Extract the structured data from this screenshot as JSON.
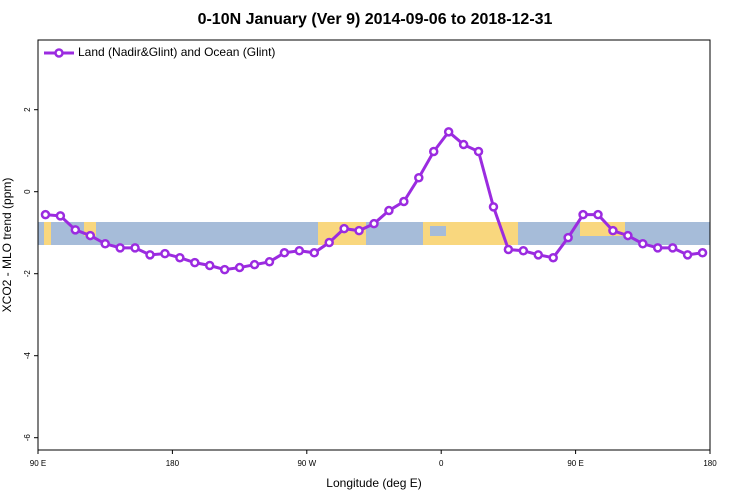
{
  "chart_data": {
    "type": "line",
    "title": "0-10N January (Ver 9)   2014-09-06 to 2018-12-31",
    "x_label": "Longitude (deg E)",
    "y_label": "XCO2 - MLO trend (ppm)",
    "xlim": [
      90,
      540
    ],
    "ylim": [
      -6.3,
      3.7
    ],
    "xticks": [
      {
        "value": 90,
        "label": "90 E"
      },
      {
        "value": 180,
        "label": "180"
      },
      {
        "value": 270,
        "label": "90 W"
      },
      {
        "value": 360,
        "label": "0"
      },
      {
        "value": 450,
        "label": "90 E"
      },
      {
        "value": 540,
        "label": "180"
      }
    ],
    "yticks": [
      2,
      0,
      -2,
      -4,
      -6
    ],
    "legend": "top-left",
    "x": [
      95,
      105,
      115,
      125,
      135,
      145,
      155,
      165,
      175,
      185,
      195,
      205,
      215,
      225,
      235,
      245,
      255,
      265,
      275,
      285,
      295,
      305,
      315,
      325,
      335,
      345,
      355,
      365,
      375,
      385,
      395,
      405,
      415,
      425,
      435,
      445,
      455,
      465,
      475,
      485,
      495,
      505,
      515,
      525,
      535
    ],
    "series": [
      {
        "name": "Land (Nadir&Glint) and Ocean (Glint)",
        "color": "#9b2be0",
        "values": [
          -0.56,
          -0.59,
          -0.93,
          -1.07,
          -1.27,
          -1.37,
          -1.37,
          -1.54,
          -1.51,
          -1.61,
          -1.73,
          -1.8,
          -1.9,
          -1.85,
          -1.78,
          -1.71,
          -1.49,
          -1.44,
          -1.49,
          -1.24,
          -0.9,
          -0.95,
          -0.78,
          -0.46,
          -0.24,
          0.34,
          0.98,
          1.46,
          1.15,
          0.98,
          -0.37,
          -1.41,
          -1.44,
          -1.54,
          -1.61,
          -1.12,
          -0.56,
          -0.56,
          -0.95,
          -1.07,
          -1.27,
          -1.37,
          -1.37,
          -1.54,
          -1.49
        ]
      }
    ]
  }
}
